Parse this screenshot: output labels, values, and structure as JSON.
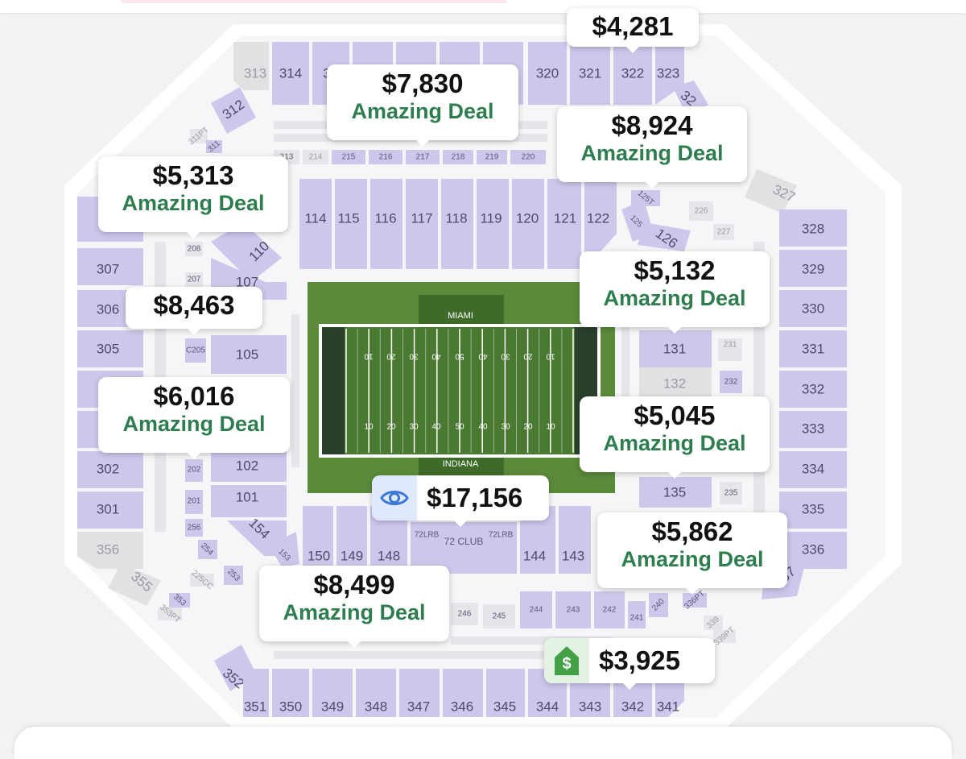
{
  "map": {
    "home_team": "MIAMI",
    "away_team": "INDIANA",
    "yard_labels": [
      "10",
      "20",
      "30",
      "40",
      "50",
      "40",
      "30",
      "20",
      "10"
    ],
    "sections": [
      {
        "label": "313",
        "tone": "gray"
      },
      {
        "label": "314"
      },
      {
        "label": "3"
      },
      {
        "label": "320"
      },
      {
        "label": "321"
      },
      {
        "label": "322"
      },
      {
        "label": "323"
      },
      {
        "label": "32"
      },
      {
        "label": "312"
      },
      {
        "label": "327",
        "tone": "gray"
      },
      {
        "label": "114"
      },
      {
        "label": "115"
      },
      {
        "label": "116"
      },
      {
        "label": "117"
      },
      {
        "label": "118"
      },
      {
        "label": "119"
      },
      {
        "label": "120"
      },
      {
        "label": "121"
      },
      {
        "label": "122"
      },
      {
        "label": "110"
      },
      {
        "label": "107"
      },
      {
        "label": "105"
      },
      {
        "label": "102"
      },
      {
        "label": "101"
      },
      {
        "label": "154"
      },
      {
        "label": "153"
      },
      {
        "label": "125"
      },
      {
        "label": "126"
      },
      {
        "label": "131"
      },
      {
        "label": "132",
        "tone": "gray"
      },
      {
        "label": "135"
      },
      {
        "label": "307"
      },
      {
        "label": "306"
      },
      {
        "label": "305"
      },
      {
        "label": "302"
      },
      {
        "label": "301"
      },
      {
        "label": "356",
        "tone": "gray"
      },
      {
        "label": "355",
        "tone": "gray"
      },
      {
        "label": "328"
      },
      {
        "label": "329"
      },
      {
        "label": "330"
      },
      {
        "label": "331"
      },
      {
        "label": "332"
      },
      {
        "label": "333"
      },
      {
        "label": "334"
      },
      {
        "label": "335"
      },
      {
        "label": "336"
      },
      {
        "label": "337"
      },
      {
        "label": "150"
      },
      {
        "label": "149"
      },
      {
        "label": "148"
      },
      {
        "label": "144"
      },
      {
        "label": "143"
      },
      {
        "label": "72 CLUB"
      },
      {
        "label": "352"
      },
      {
        "label": "351"
      },
      {
        "label": "350"
      },
      {
        "label": "349"
      },
      {
        "label": "348"
      },
      {
        "label": "347"
      },
      {
        "label": "346"
      },
      {
        "label": "345"
      },
      {
        "label": "344"
      },
      {
        "label": "343"
      },
      {
        "label": "342"
      },
      {
        "label": "341"
      }
    ],
    "small_sections": [
      "213",
      "214",
      "215",
      "216",
      "217",
      "218",
      "219",
      "220",
      "208",
      "207",
      "C205",
      "202",
      "201",
      "256",
      "254",
      "253",
      "231",
      "232",
      "235",
      "244",
      "243",
      "242",
      "241",
      "240",
      "246",
      "245",
      "72LRB",
      "72LRB",
      "226",
      "227",
      "125T",
      "311",
      "311PT",
      "225CC",
      "353",
      "353PT",
      "336PT",
      "339",
      "339PT"
    ]
  },
  "price_tags": [
    {
      "id": "tag-4281",
      "price": "$4,281",
      "deal": ""
    },
    {
      "id": "tag-7830",
      "price": "$7,830",
      "deal": "Amazing Deal"
    },
    {
      "id": "tag-8924",
      "price": "$8,924",
      "deal": "Amazing Deal"
    },
    {
      "id": "tag-5313",
      "price": "$5,313",
      "deal": "Amazing Deal"
    },
    {
      "id": "tag-8463",
      "price": "$8,463",
      "deal": ""
    },
    {
      "id": "tag-5132",
      "price": "$5,132",
      "deal": "Amazing Deal"
    },
    {
      "id": "tag-6016",
      "price": "$6,016",
      "deal": "Amazing Deal"
    },
    {
      "id": "tag-5045",
      "price": "$5,045",
      "deal": "Amazing Deal"
    },
    {
      "id": "tag-17156",
      "price": "$17,156",
      "deal": "",
      "icon": "eye-icon"
    },
    {
      "id": "tag-5862",
      "price": "$5,862",
      "deal": "Amazing Deal"
    },
    {
      "id": "tag-8499",
      "price": "$8,499",
      "deal": "Amazing Deal"
    },
    {
      "id": "tag-3925",
      "price": "$3,925",
      "deal": "",
      "icon": "dollar-tag-icon"
    }
  ],
  "colors": {
    "section_fill": "#cec7ec",
    "deal_text": "#2e7d4f",
    "field_green": "#5a8a3a",
    "eye_badge_bg": "#dfe9fb",
    "dollar_badge_bg": "#4caf50"
  }
}
